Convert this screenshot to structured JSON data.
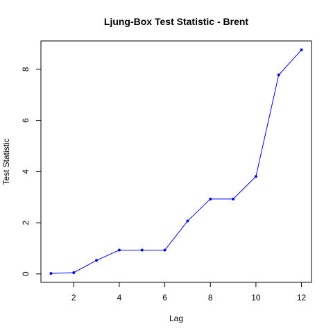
{
  "chart_data": {
    "type": "line",
    "title": "Ljung-Box Test Statistic - Brent",
    "xlabel": "Lag",
    "ylabel": "Test Statistic",
    "x": [
      1,
      2,
      3,
      4,
      5,
      6,
      7,
      8,
      9,
      10,
      11,
      12
    ],
    "series": [
      {
        "values": [
          0.02,
          0.05,
          0.53,
          0.93,
          0.93,
          0.93,
          2.07,
          2.93,
          2.93,
          3.81,
          7.78,
          8.76
        ],
        "color": "#0000ff"
      }
    ],
    "xlim": [
      0.56,
      12.44
    ],
    "ylim": [
      -0.33,
      9.11
    ],
    "x_ticks": [
      "2",
      "4",
      "6",
      "8",
      "10",
      "12"
    ],
    "y_ticks": [
      "0",
      "2",
      "4",
      "6",
      "8"
    ],
    "grid": false,
    "legend": "none",
    "line_style": "line with filled point markers"
  }
}
